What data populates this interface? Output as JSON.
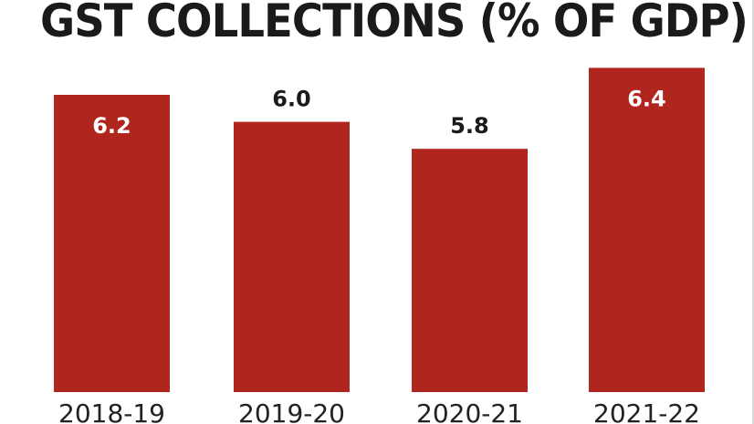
{
  "chart_data": {
    "type": "bar",
    "title": "GST COLLECTIONS (% OF GDP)",
    "categories": [
      "2018-19",
      "2019-20",
      "2020-21",
      "2021-22"
    ],
    "values": [
      6.2,
      6.0,
      5.8,
      6.4
    ],
    "data_labels": [
      "6.2",
      "6.0",
      "5.8",
      "6.4"
    ],
    "label_inside": [
      true,
      false,
      false,
      true
    ],
    "xlabel": "",
    "ylabel": "",
    "grid": false,
    "legend": "none",
    "colors": {
      "bar": "#b0261e",
      "label_inside": "#ffffff",
      "label_outside": "#1a1a1a",
      "title": "#1a1a1a"
    }
  }
}
